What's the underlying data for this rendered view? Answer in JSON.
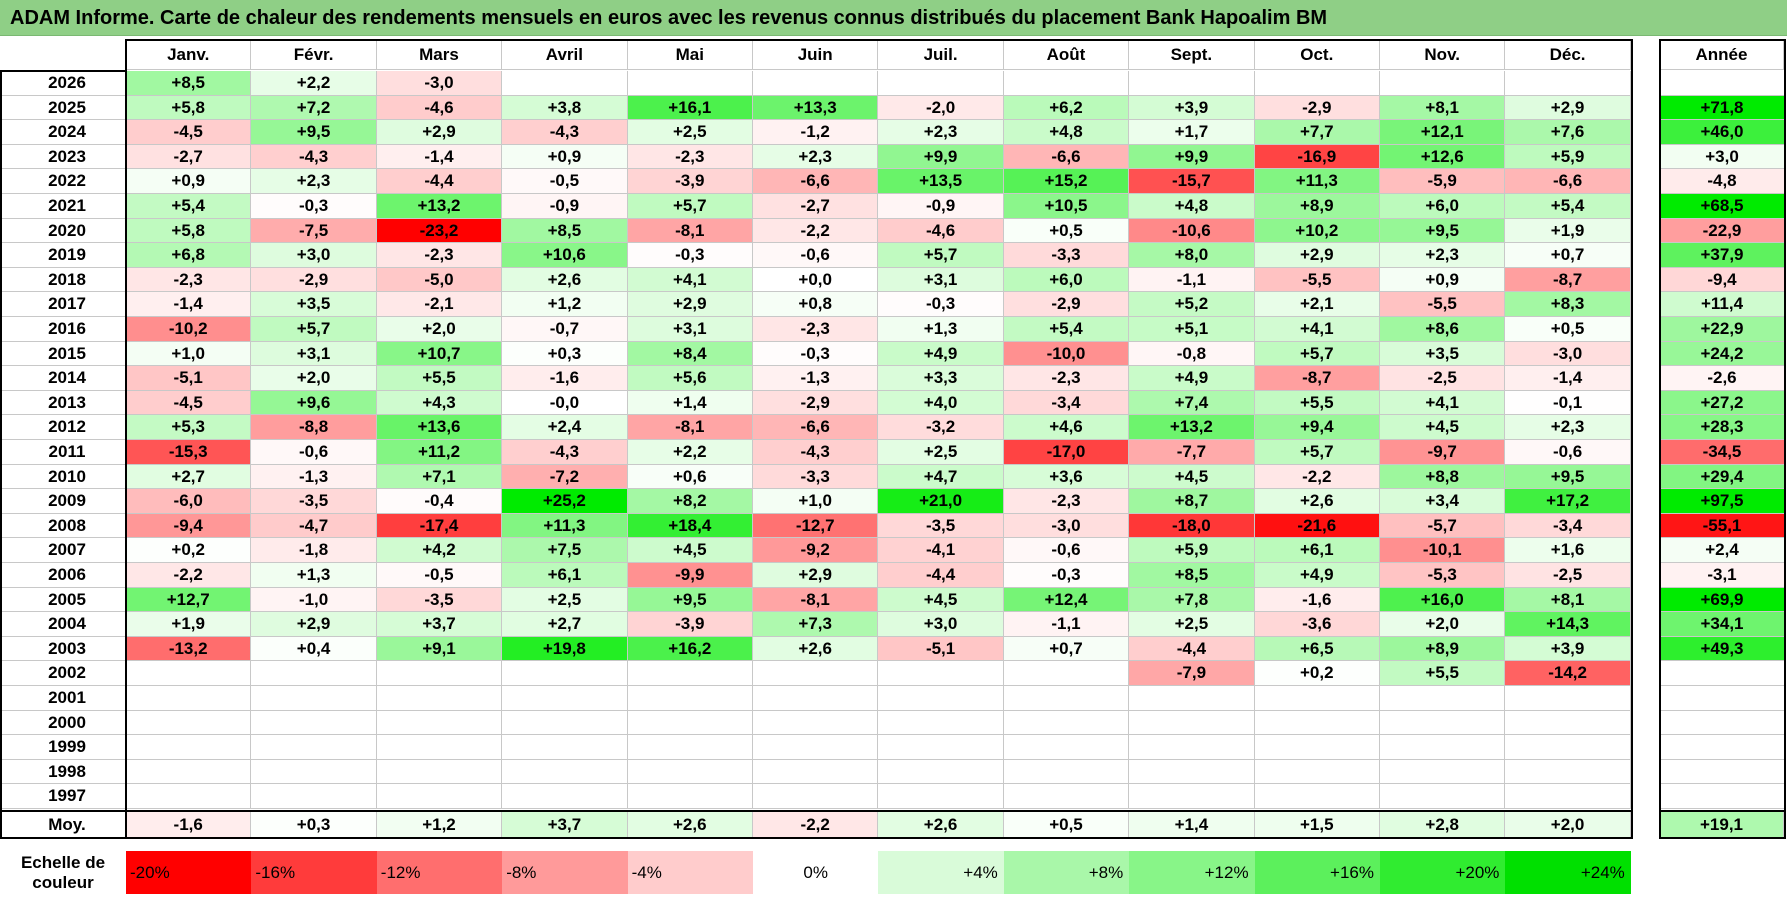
{
  "title": "ADAM Informe. Carte de chaleur des rendements mensuels en euros avec les revenus connus distribués du placement Bank Hapoalim BM",
  "chart_data": {
    "type": "heatmap",
    "title": "ADAM Informe. Carte de chaleur des rendements mensuels en euros avec les revenus connus distribués du placement Bank Hapoalim BM",
    "months": [
      "Janv.",
      "Févr.",
      "Mars",
      "Avril",
      "Mai",
      "Juin",
      "Juil.",
      "Août",
      "Sept.",
      "Oct.",
      "Nov.",
      "Déc."
    ],
    "year_header": "Année",
    "rows": [
      {
        "year": "2026",
        "m": [
          "+8,5",
          "+2,2",
          "-3,0",
          "",
          "",
          "",
          "",
          "",
          "",
          "",
          "",
          ""
        ],
        "a": ""
      },
      {
        "year": "2025",
        "m": [
          "+5,8",
          "+7,2",
          "-4,6",
          "+3,8",
          "+16,1",
          "+13,3",
          "-2,0",
          "+6,2",
          "+3,9",
          "-2,9",
          "+8,1",
          "+2,9"
        ],
        "a": "+71,8"
      },
      {
        "year": "2024",
        "m": [
          "-4,5",
          "+9,5",
          "+2,9",
          "-4,3",
          "+2,5",
          "-1,2",
          "+2,3",
          "+4,8",
          "+1,7",
          "+7,7",
          "+12,1",
          "+7,6"
        ],
        "a": "+46,0"
      },
      {
        "year": "2023",
        "m": [
          "-2,7",
          "-4,3",
          "-1,4",
          "+0,9",
          "-2,3",
          "+2,3",
          "+9,9",
          "-6,6",
          "+9,9",
          "-16,9",
          "+12,6",
          "+5,9"
        ],
        "a": "+3,0"
      },
      {
        "year": "2022",
        "m": [
          "+0,9",
          "+2,3",
          "-4,4",
          "-0,5",
          "-3,9",
          "-6,6",
          "+13,5",
          "+15,2",
          "-15,7",
          "+11,3",
          "-5,9",
          "-6,6"
        ],
        "a": "-4,8"
      },
      {
        "year": "2021",
        "m": [
          "+5,4",
          "-0,3",
          "+13,2",
          "-0,9",
          "+5,7",
          "-2,7",
          "-0,9",
          "+10,5",
          "+4,8",
          "+8,9",
          "+6,0",
          "+5,4"
        ],
        "a": "+68,5"
      },
      {
        "year": "2020",
        "m": [
          "+5,8",
          "-7,5",
          "-23,2",
          "+8,5",
          "-8,1",
          "-2,2",
          "-4,6",
          "+0,5",
          "-10,6",
          "+10,2",
          "+9,5",
          "+1,9"
        ],
        "a": "-22,9"
      },
      {
        "year": "2019",
        "m": [
          "+6,8",
          "+3,0",
          "-2,3",
          "+10,6",
          "-0,3",
          "-0,6",
          "+5,7",
          "-3,3",
          "+8,0",
          "+2,9",
          "+2,3",
          "+0,7"
        ],
        "a": "+37,9"
      },
      {
        "year": "2018",
        "m": [
          "-2,3",
          "-2,9",
          "-5,0",
          "+2,6",
          "+4,1",
          "+0,0",
          "+3,1",
          "+6,0",
          "-1,1",
          "-5,5",
          "+0,9",
          "-8,7"
        ],
        "a": "-9,4"
      },
      {
        "year": "2017",
        "m": [
          "-1,4",
          "+3,5",
          "-2,1",
          "+1,2",
          "+2,9",
          "+0,8",
          "-0,3",
          "-2,9",
          "+5,2",
          "+2,1",
          "-5,5",
          "+8,3"
        ],
        "a": "+11,4"
      },
      {
        "year": "2016",
        "m": [
          "-10,2",
          "+5,7",
          "+2,0",
          "-0,7",
          "+3,1",
          "-2,3",
          "+1,3",
          "+5,4",
          "+5,1",
          "+4,1",
          "+8,6",
          "+0,5"
        ],
        "a": "+22,9"
      },
      {
        "year": "2015",
        "m": [
          "+1,0",
          "+3,1",
          "+10,7",
          "+0,3",
          "+8,4",
          "-0,3",
          "+4,9",
          "-10,0",
          "-0,8",
          "+5,7",
          "+3,5",
          "-3,0"
        ],
        "a": "+24,2"
      },
      {
        "year": "2014",
        "m": [
          "-5,1",
          "+2,0",
          "+5,5",
          "-1,6",
          "+5,6",
          "-1,3",
          "+3,3",
          "-2,3",
          "+4,9",
          "-8,7",
          "-2,5",
          "-1,4"
        ],
        "a": "-2,6"
      },
      {
        "year": "2013",
        "m": [
          "-4,5",
          "+9,6",
          "+4,3",
          "-0,0",
          "+1,4",
          "-2,9",
          "+4,0",
          "-3,4",
          "+7,4",
          "+5,5",
          "+4,1",
          "-0,1"
        ],
        "a": "+27,2"
      },
      {
        "year": "2012",
        "m": [
          "+5,3",
          "-8,8",
          "+13,6",
          "+2,4",
          "-8,1",
          "-6,6",
          "-3,2",
          "+4,6",
          "+13,2",
          "+9,4",
          "+4,5",
          "+2,3"
        ],
        "a": "+28,3"
      },
      {
        "year": "2011",
        "m": [
          "-15,3",
          "-0,6",
          "+11,2",
          "-4,3",
          "+2,2",
          "-4,3",
          "+2,5",
          "-17,0",
          "-7,7",
          "+5,7",
          "-9,7",
          "-0,6"
        ],
        "a": "-34,5"
      },
      {
        "year": "2010",
        "m": [
          "+2,7",
          "-1,3",
          "+7,1",
          "-7,2",
          "+0,6",
          "-3,3",
          "+4,7",
          "+3,6",
          "+4,5",
          "-2,2",
          "+8,8",
          "+9,5"
        ],
        "a": "+29,4"
      },
      {
        "year": "2009",
        "m": [
          "-6,0",
          "-3,5",
          "-0,4",
          "+25,2",
          "+8,2",
          "+1,0",
          "+21,0",
          "-2,3",
          "+8,7",
          "+2,6",
          "+3,4",
          "+17,2"
        ],
        "a": "+97,5"
      },
      {
        "year": "2008",
        "m": [
          "-9,4",
          "-4,7",
          "-17,4",
          "+11,3",
          "+18,4",
          "-12,7",
          "-3,5",
          "-3,0",
          "-18,0",
          "-21,6",
          "-5,7",
          "-3,4"
        ],
        "a": "-55,1"
      },
      {
        "year": "2007",
        "m": [
          "+0,2",
          "-1,8",
          "+4,2",
          "+7,5",
          "+4,5",
          "-9,2",
          "-4,1",
          "-0,6",
          "+5,9",
          "+6,1",
          "-10,1",
          "+1,6"
        ],
        "a": "+2,4"
      },
      {
        "year": "2006",
        "m": [
          "-2,2",
          "+1,3",
          "-0,5",
          "+6,1",
          "-9,9",
          "+2,9",
          "-4,4",
          "-0,3",
          "+8,5",
          "+4,9",
          "-5,3",
          "-2,5"
        ],
        "a": "-3,1"
      },
      {
        "year": "2005",
        "m": [
          "+12,7",
          "-1,0",
          "-3,5",
          "+2,5",
          "+9,5",
          "-8,1",
          "+4,5",
          "+12,4",
          "+7,8",
          "-1,6",
          "+16,0",
          "+8,1"
        ],
        "a": "+69,9"
      },
      {
        "year": "2004",
        "m": [
          "+1,9",
          "+2,9",
          "+3,7",
          "+2,7",
          "-3,9",
          "+7,3",
          "+3,0",
          "-1,1",
          "+2,5",
          "-3,6",
          "+2,0",
          "+14,3"
        ],
        "a": "+34,1"
      },
      {
        "year": "2003",
        "m": [
          "-13,2",
          "+0,4",
          "+9,1",
          "+19,8",
          "+16,2",
          "+2,6",
          "-5,1",
          "+0,7",
          "-4,4",
          "+6,5",
          "+8,9",
          "+3,9"
        ],
        "a": "+49,3"
      },
      {
        "year": "2002",
        "m": [
          "",
          "",
          "",
          "",
          "",
          "",
          "",
          "",
          "-7,9",
          "+0,2",
          "+5,5",
          "-14,2"
        ],
        "a": ""
      },
      {
        "year": "2001",
        "m": [
          "",
          "",
          "",
          "",
          "",
          "",
          "",
          "",
          "",
          "",
          "",
          ""
        ],
        "a": ""
      },
      {
        "year": "2000",
        "m": [
          "",
          "",
          "",
          "",
          "",
          "",
          "",
          "",
          "",
          "",
          "",
          ""
        ],
        "a": ""
      },
      {
        "year": "1999",
        "m": [
          "",
          "",
          "",
          "",
          "",
          "",
          "",
          "",
          "",
          "",
          "",
          ""
        ],
        "a": ""
      },
      {
        "year": "1998",
        "m": [
          "",
          "",
          "",
          "",
          "",
          "",
          "",
          "",
          "",
          "",
          "",
          ""
        ],
        "a": ""
      },
      {
        "year": "1997",
        "m": [
          "",
          "",
          "",
          "",
          "",
          "",
          "",
          "",
          "",
          "",
          "",
          ""
        ],
        "a": ""
      }
    ],
    "average": {
      "label": "Moy.",
      "m": [
        "-1,6",
        "+0,3",
        "+1,2",
        "+3,7",
        "+2,6",
        "-2,2",
        "+2,6",
        "+0,5",
        "+1,4",
        "+1,5",
        "+2,8",
        "+2,0"
      ],
      "a": "+19,1"
    },
    "color_scale": {
      "label": "Echelle de couleur",
      "steps": [
        "-20%",
        "-16%",
        "-12%",
        "-8%",
        "-4%",
        "0%",
        "+4%",
        "+8%",
        "+12%",
        "+16%",
        "+20%",
        "+24%"
      ],
      "colors": [
        "#ff0000",
        "#ff3b3b",
        "#ff6e6e",
        "#ff9a9a",
        "#ffcccc",
        "#ffffff",
        "#d9fbd9",
        "#a9f7a9",
        "#88f588",
        "#5cf05c",
        "#30ec30",
        "#00e000"
      ]
    }
  }
}
